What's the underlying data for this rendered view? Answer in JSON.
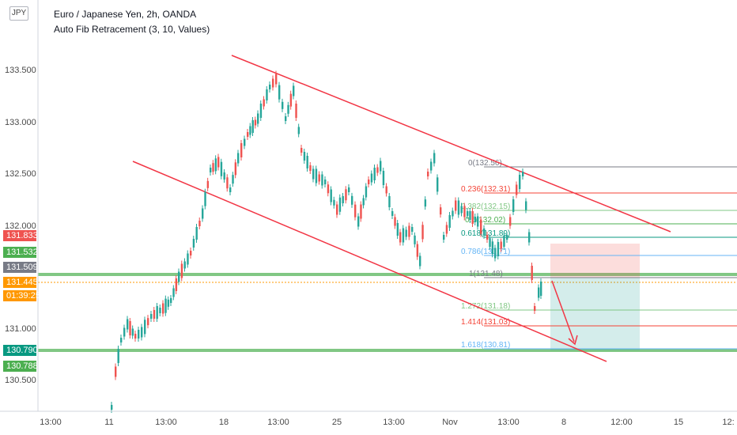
{
  "legend": {
    "title": "Euro / Japanese Yen, 2h, OANDA",
    "indicator": "Auto Fib Retracement (3, 10, Values)"
  },
  "currency_button": "JPY",
  "yaxis": {
    "ticks": [
      "133.500",
      "133.000",
      "132.500",
      "132.000",
      "131.000",
      "130.500"
    ]
  },
  "price_tags": [
    {
      "label": "131.833",
      "color": "#ef5350"
    },
    {
      "label": "131.532",
      "color": "#4caf50"
    },
    {
      "label": "131.509",
      "color": "#787b86"
    },
    {
      "label": "131.445",
      "color": "#ff9800"
    },
    {
      "label": "01:39:25",
      "color": "#ff9800"
    },
    {
      "label": "130.790",
      "color": "#089981"
    },
    {
      "label": "130.788",
      "color": "#4caf50"
    }
  ],
  "xaxis": {
    "ticks": [
      "13:00",
      "11",
      "13:00",
      "18",
      "13:00",
      "25",
      "13:00",
      "Nov",
      "13:00",
      "8",
      "12:00",
      "15",
      "12:"
    ]
  },
  "fib_levels": [
    {
      "label": "0(132.56)",
      "color": "#787b86"
    },
    {
      "label": "0.236(132.31)",
      "color": "#f44336"
    },
    {
      "label": "0.382(132.15)",
      "color": "#81c784"
    },
    {
      "label": "0.5(132.02)",
      "color": "#4caf50"
    },
    {
      "label": "0.618(131.89)",
      "color": "#089981"
    },
    {
      "label": "0.786(131.71)",
      "color": "#64b5f6"
    },
    {
      "label": "1(131.48)",
      "color": "#787b86"
    },
    {
      "label": "1.272(131.18)",
      "color": "#81c784"
    },
    {
      "label": "1.414(131.03)",
      "color": "#f44336"
    },
    {
      "label": "1.618(130.81)",
      "color": "#64b5f6"
    }
  ],
  "colors": {
    "up": "#26a69a",
    "down": "#ef5350",
    "channel": "#f23645"
  }
}
